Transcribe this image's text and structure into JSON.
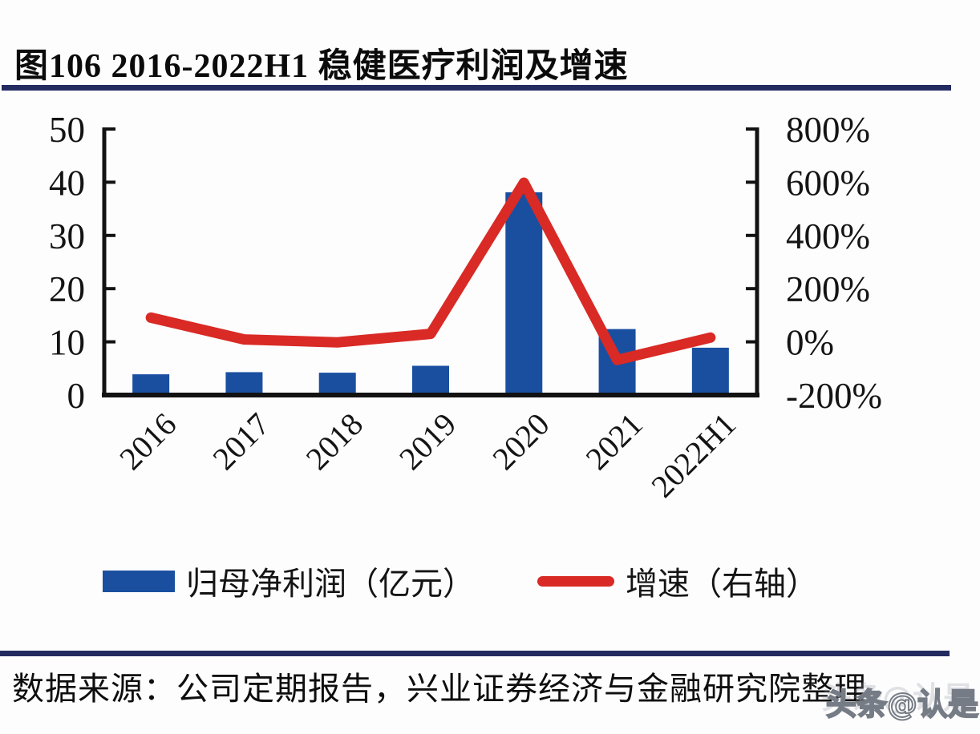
{
  "title": "图106 2016-2022H1 稳健医疗利润及增速",
  "legend": {
    "items": [
      {
        "label": "归母净利润（亿元）",
        "marker": "bar-swatch"
      },
      {
        "label": "增速（右轴）",
        "marker": "line-swatch"
      }
    ]
  },
  "footer": {
    "source_text": "数据来源：公司定期报告，兴业证券经济与金融研究院整理"
  },
  "watermark": "头条@认是",
  "colors": {
    "bar": "#1a4fa0",
    "line": "#d92a25",
    "rule": "#232b61",
    "axis": "#121212",
    "text": "#141414"
  },
  "chart_data": {
    "type": "bar",
    "title": "图106 2016-2022H1 稳健医疗利润及增速",
    "categories": [
      "2016",
      "2017",
      "2018",
      "2019",
      "2020",
      "2021",
      "2022H1"
    ],
    "series": [
      {
        "name": "归母净利润（亿元）",
        "type": "bar",
        "axis": "left",
        "unit": "亿元",
        "values": [
          3.9,
          4.3,
          4.2,
          5.5,
          38.1,
          12.4,
          8.9
        ]
      },
      {
        "name": "增速（右轴）",
        "type": "line",
        "axis": "right",
        "unit": "%",
        "values": [
          91,
          9,
          -2,
          30,
          598,
          -68,
          16
        ]
      }
    ],
    "left_axis": {
      "range": [
        0,
        50
      ],
      "tick_values": [
        0,
        10,
        20,
        30,
        40,
        50
      ],
      "tick_labels": [
        "0",
        "10",
        "20",
        "30",
        "40",
        "50"
      ]
    },
    "right_axis": {
      "range": [
        -200,
        800
      ],
      "tick_values": [
        -200,
        0,
        200,
        400,
        600,
        800
      ],
      "tick_labels": [
        "-200%",
        "0%",
        "200%",
        "400%",
        "600%",
        "800%"
      ]
    },
    "grid": false,
    "legend_position": "bottom",
    "x_label_rotation_deg": -45
  }
}
